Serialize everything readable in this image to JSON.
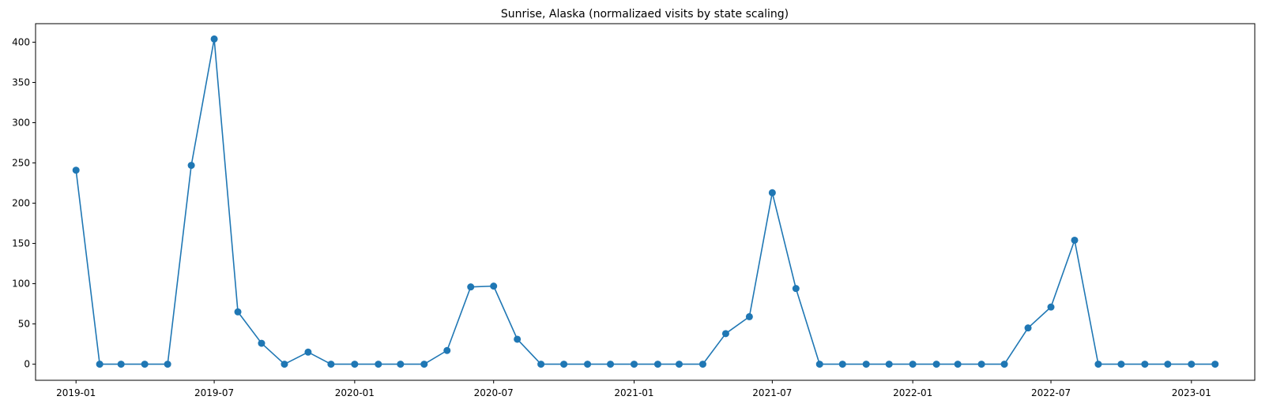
{
  "chart_data": {
    "type": "line",
    "title": "Sunrise, Alaska (normalizaed visits by state scaling)",
    "xlabel": "",
    "ylabel": "",
    "x_ticks": [
      "2019-01",
      "2019-07",
      "2020-01",
      "2020-07",
      "2021-01",
      "2021-07",
      "2022-01",
      "2022-07",
      "2023-01"
    ],
    "y_ticks": [
      0,
      50,
      100,
      150,
      200,
      250,
      300,
      350,
      400
    ],
    "ylim": [
      -20,
      423
    ],
    "xlim": [
      "2018-11-09",
      "2023-03-25"
    ],
    "grid": false,
    "marker": "circle",
    "series": [
      {
        "color": "#1f77b4",
        "x": [
          "2019-01-01",
          "2019-02-01",
          "2019-03-01",
          "2019-04-01",
          "2019-05-01",
          "2019-06-01",
          "2019-07-01",
          "2019-08-01",
          "2019-09-01",
          "2019-10-01",
          "2019-11-01",
          "2019-12-01",
          "2020-01-01",
          "2020-02-01",
          "2020-03-01",
          "2020-04-01",
          "2020-05-01",
          "2020-06-01",
          "2020-07-01",
          "2020-08-01",
          "2020-09-01",
          "2020-10-01",
          "2020-11-01",
          "2020-12-01",
          "2021-01-01",
          "2021-02-01",
          "2021-03-01",
          "2021-04-01",
          "2021-05-01",
          "2021-06-01",
          "2021-07-01",
          "2021-08-01",
          "2021-09-01",
          "2021-10-01",
          "2021-11-01",
          "2021-12-01",
          "2022-01-01",
          "2022-02-01",
          "2022-03-01",
          "2022-04-01",
          "2022-05-01",
          "2022-06-01",
          "2022-07-01",
          "2022-08-01",
          "2022-09-01",
          "2022-10-01",
          "2022-11-01",
          "2022-12-01",
          "2023-01-01",
          "2023-02-01"
        ],
        "values": [
          241,
          0,
          0,
          0,
          0,
          247,
          404,
          65,
          26,
          0,
          15,
          0,
          0,
          0,
          0,
          0,
          17,
          96,
          97,
          31,
          0,
          0,
          0,
          0,
          0,
          0,
          0,
          0,
          38,
          59,
          213,
          94,
          0,
          0,
          0,
          0,
          0,
          0,
          0,
          0,
          0,
          45,
          71,
          154,
          0,
          0,
          0,
          0,
          0,
          0
        ]
      }
    ]
  }
}
